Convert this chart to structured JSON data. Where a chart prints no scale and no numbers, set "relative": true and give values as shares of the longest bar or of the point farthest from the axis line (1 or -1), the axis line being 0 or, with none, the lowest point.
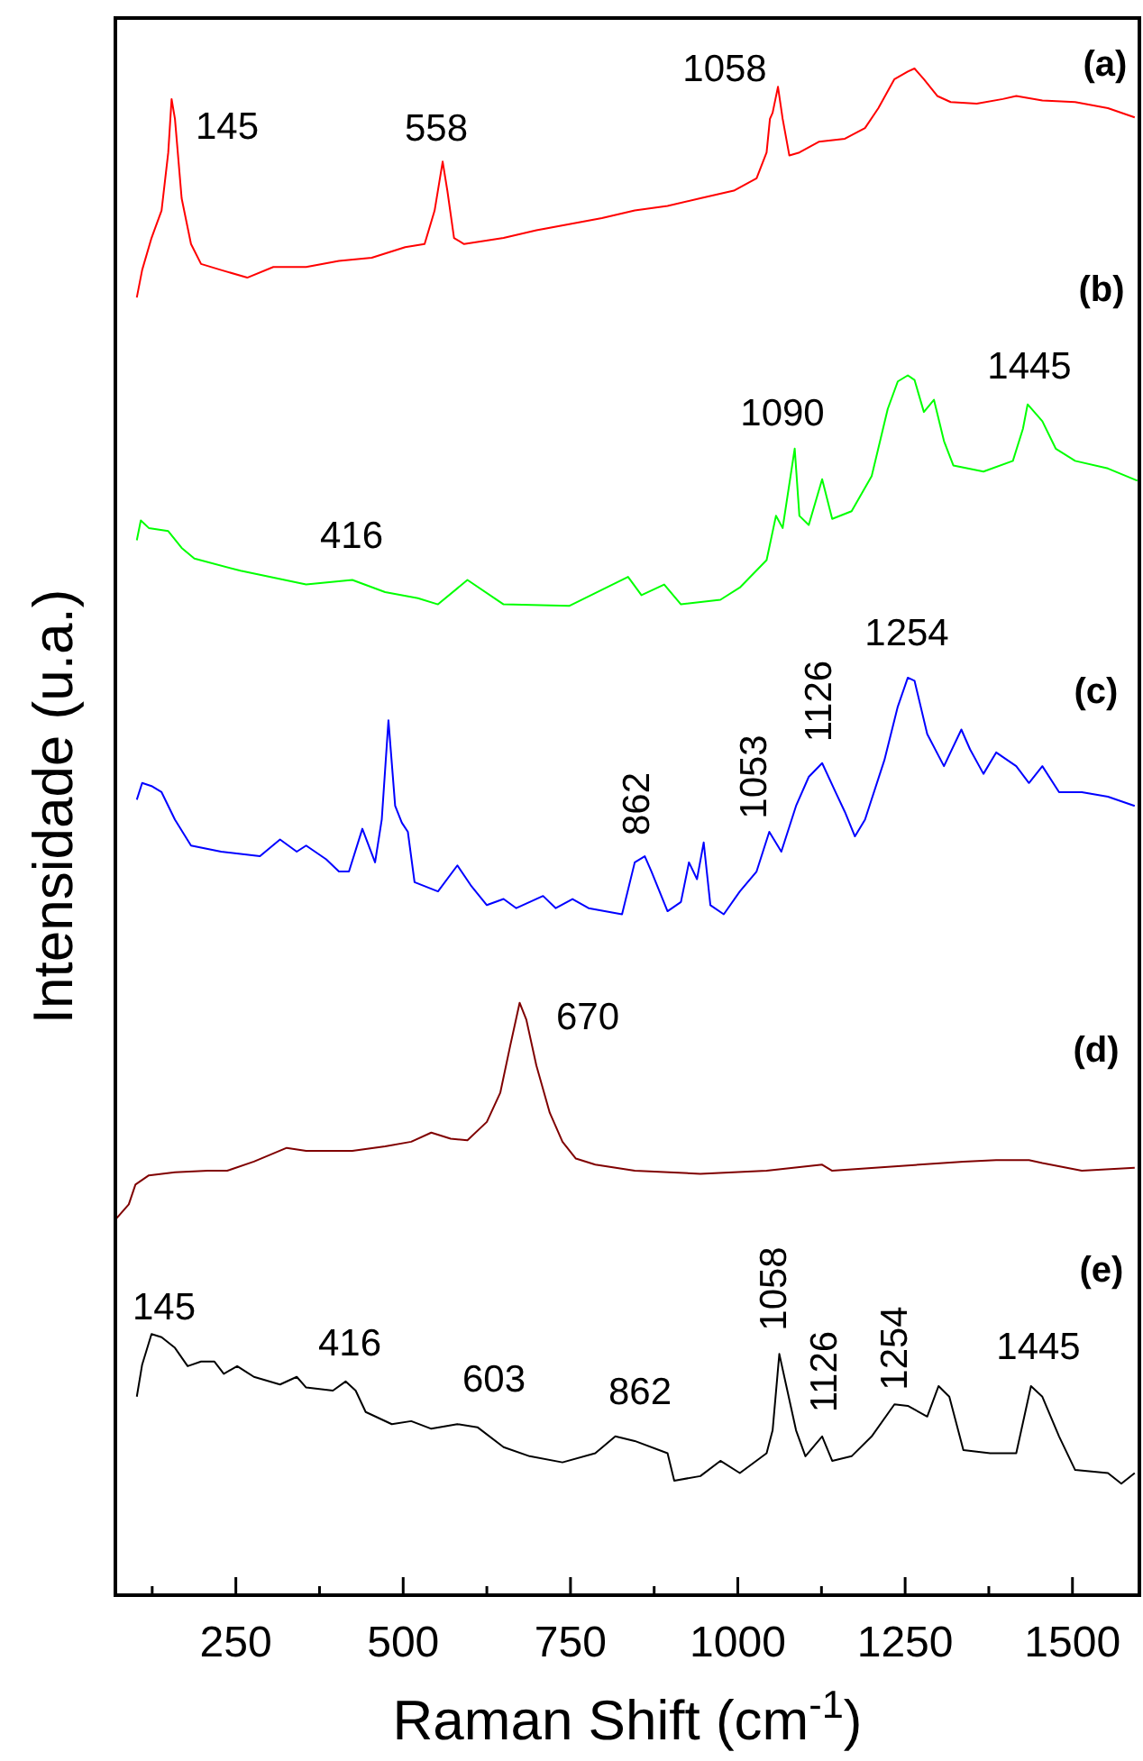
{
  "chart_data": {
    "type": "line",
    "relative": true,
    "xlabel": "Raman Shift (cm$^{-1}$)",
    "ylabel": "Intensidade (u.a.)",
    "xlim": [
      70,
      1600
    ],
    "xticks": [
      {
        "value": 125,
        "label": null
      },
      250,
      {
        "value": 375,
        "label": null
      },
      500,
      {
        "value": 625,
        "label": null
      },
      750,
      {
        "value": 875,
        "label": null
      },
      1000,
      {
        "value": 1125,
        "label": null
      },
      1250,
      {
        "value": 1375,
        "label": null
      },
      1500
    ],
    "series": [
      {
        "color": "#ff0000",
        "x": [
          102,
          110,
          124,
          139,
          149,
          154,
          159,
          169,
          183,
          198,
          228,
          267,
          306,
          355,
          404,
          453,
          503,
          532,
          547,
          559,
          566,
          576,
          591,
          650,
          699,
          748,
          797,
          846,
          895,
          944,
          994,
          1028,
          1043,
          1048,
          1052,
          1060,
          1067,
          1077,
          1092,
          1121,
          1160,
          1190,
          1210,
          1234,
          1254,
          1264,
          1278,
          1298,
          1318,
          1357,
          1396,
          1416,
          1455,
          1504,
          1553,
          1593
        ],
        "values": [
          0.85,
          0.868,
          0.889,
          0.907,
          0.945,
          0.98,
          0.967,
          0.915,
          0.885,
          0.872,
          0.868,
          0.863,
          0.87,
          0.87,
          0.874,
          0.876,
          0.883,
          0.885,
          0.907,
          0.939,
          0.92,
          0.889,
          0.885,
          0.889,
          0.894,
          0.898,
          0.902,
          0.907,
          0.91,
          0.915,
          0.92,
          0.928,
          0.945,
          0.967,
          0.971,
          0.988,
          0.967,
          0.943,
          0.945,
          0.952,
          0.954,
          0.961,
          0.974,
          0.993,
          0.998,
          1.0,
          0.993,
          0.982,
          0.978,
          0.977,
          0.98,
          0.982,
          0.979,
          0.978,
          0.974,
          0.968
        ]
      },
      {
        "color": "#00ff00",
        "x": [
          102,
          108,
          120,
          149,
          169,
          188,
          257,
          355,
          424,
          473,
          522,
          552,
          596,
          650,
          748,
          836,
          856,
          890,
          915,
          974,
          1003,
          1043,
          1057,
          1067,
          1085,
          1092,
          1106,
          1126,
          1141,
          1170,
          1200,
          1224,
          1239,
          1254,
          1264,
          1278,
          1293,
          1308,
          1322,
          1367,
          1411,
          1426,
          1433,
          1455,
          1475,
          1504,
          1553,
          1597
        ],
        "values": [
          0.691,
          0.704,
          0.699,
          0.697,
          0.686,
          0.679,
          0.671,
          0.662,
          0.665,
          0.657,
          0.653,
          0.649,
          0.665,
          0.649,
          0.648,
          0.667,
          0.655,
          0.662,
          0.649,
          0.652,
          0.66,
          0.678,
          0.707,
          0.699,
          0.751,
          0.707,
          0.701,
          0.731,
          0.705,
          0.71,
          0.733,
          0.777,
          0.795,
          0.799,
          0.796,
          0.775,
          0.783,
          0.756,
          0.74,
          0.736,
          0.743,
          0.764,
          0.78,
          0.769,
          0.751,
          0.743,
          0.738,
          0.73
        ]
      },
      {
        "color": "#0000ff",
        "x": [
          102,
          110,
          124,
          139,
          159,
          183,
          228,
          286,
          316,
          341,
          355,
          385,
          404,
          419,
          439,
          458,
          468,
          478,
          488,
          498,
          507,
          517,
          552,
          581,
          601,
          625,
          650,
          669,
          709,
          728,
          753,
          777,
          827,
          846,
          861,
          871,
          895,
          915,
          927,
          939,
          949,
          959,
          979,
          1003,
          1028,
          1047,
          1065,
          1087,
          1106,
          1126,
          1146,
          1160,
          1175,
          1190,
          1219,
          1239,
          1254,
          1264,
          1283,
          1308,
          1334,
          1347,
          1367,
          1386,
          1416,
          1435,
          1455,
          1480,
          1514,
          1553,
          1593
        ],
        "values": [
          0.521,
          0.532,
          0.53,
          0.526,
          0.508,
          0.491,
          0.487,
          0.484,
          0.495,
          0.487,
          0.491,
          0.482,
          0.474,
          0.474,
          0.502,
          0.48,
          0.508,
          0.573,
          0.517,
          0.506,
          0.5,
          0.467,
          0.461,
          0.478,
          0.465,
          0.452,
          0.456,
          0.45,
          0.458,
          0.45,
          0.456,
          0.45,
          0.446,
          0.48,
          0.484,
          0.474,
          0.448,
          0.454,
          0.48,
          0.469,
          0.493,
          0.452,
          0.446,
          0.461,
          0.474,
          0.5,
          0.487,
          0.517,
          0.536,
          0.545,
          0.526,
          0.513,
          0.497,
          0.508,
          0.547,
          0.582,
          0.601,
          0.599,
          0.564,
          0.543,
          0.567,
          0.554,
          0.538,
          0.552,
          0.543,
          0.532,
          0.543,
          0.526,
          0.526,
          0.523,
          0.517
        ]
      },
      {
        "color": "#800000",
        "x": [
          72,
          90,
          100,
          120,
          159,
          208,
          237,
          277,
          326,
          355,
          424,
          473,
          512,
          542,
          571,
          596,
          625,
          645,
          660,
          674,
          684,
          699,
          719,
          738,
          758,
          787,
          846,
          944,
          1043,
          1126,
          1141,
          1239,
          1337,
          1386,
          1435,
          1455,
          1514,
          1593
        ],
        "values": [
          0.247,
          0.256,
          0.269,
          0.275,
          0.277,
          0.278,
          0.278,
          0.284,
          0.293,
          0.291,
          0.291,
          0.294,
          0.297,
          0.303,
          0.299,
          0.298,
          0.31,
          0.329,
          0.36,
          0.388,
          0.377,
          0.347,
          0.316,
          0.297,
          0.286,
          0.282,
          0.278,
          0.276,
          0.278,
          0.282,
          0.278,
          0.281,
          0.284,
          0.285,
          0.285,
          0.283,
          0.278,
          0.28
        ]
      },
      {
        "color": "#000000",
        "x": [
          102,
          110,
          124,
          139,
          159,
          178,
          198,
          218,
          232,
          252,
          277,
          316,
          341,
          355,
          395,
          414,
          429,
          444,
          483,
          512,
          542,
          581,
          611,
          650,
          689,
          738,
          787,
          817,
          846,
          895,
          905,
          944,
          974,
          1003,
          1043,
          1052,
          1062,
          1072,
          1087,
          1101,
          1126,
          1141,
          1170,
          1200,
          1234,
          1254,
          1283,
          1300,
          1316,
          1337,
          1377,
          1416,
          1438,
          1455,
          1480,
          1504,
          1553,
          1573,
          1593
        ],
        "values": [
          0.13,
          0.151,
          0.171,
          0.169,
          0.162,
          0.15,
          0.153,
          0.153,
          0.145,
          0.15,
          0.143,
          0.138,
          0.143,
          0.136,
          0.134,
          0.14,
          0.134,
          0.12,
          0.112,
          0.114,
          0.109,
          0.112,
          0.11,
          0.097,
          0.091,
          0.087,
          0.093,
          0.104,
          0.101,
          0.093,
          0.075,
          0.078,
          0.088,
          0.08,
          0.093,
          0.108,
          0.158,
          0.138,
          0.108,
          0.091,
          0.104,
          0.088,
          0.091,
          0.104,
          0.125,
          0.124,
          0.117,
          0.137,
          0.13,
          0.095,
          0.093,
          0.093,
          0.137,
          0.13,
          0.104,
          0.082,
          0.08,
          0.073,
          0.08
        ]
      }
    ],
    "annotations": [
      "(a)",
      "145",
      "558",
      "1058",
      "(b)",
      "1090",
      "1445",
      "416",
      "1254",
      "(c)",
      "862",
      "1053",
      "1126",
      "670",
      "(d)",
      "(e)",
      "145",
      "416",
      "603",
      "862",
      "1058",
      "1126",
      "1254",
      "1445"
    ]
  }
}
